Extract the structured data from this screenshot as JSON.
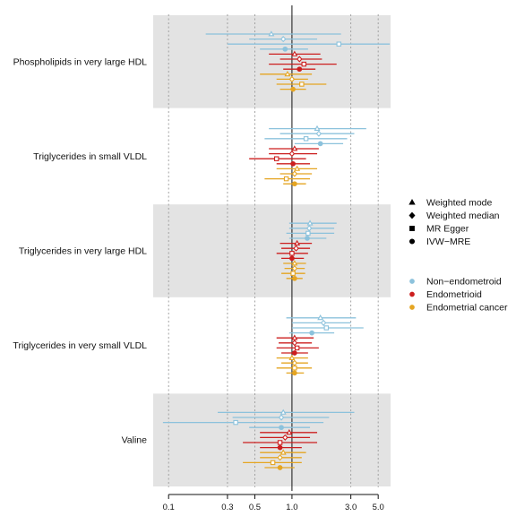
{
  "chart_data": {
    "type": "forest",
    "x_scale": "log",
    "xlim": [
      0.075,
      6.3
    ],
    "x_ticks": [
      0.1,
      0.3,
      0.5,
      1.0,
      3.0,
      5.0
    ],
    "x_tick_labels": [
      "0.1",
      "0.3",
      "0.5",
      "1.0",
      "3.0",
      "5.0"
    ],
    "reference_line": 1.0,
    "grid": "vertical dotted at ticks",
    "legend_position": "right",
    "method_legend": [
      {
        "label": "Weighted mode",
        "shape": "triangle"
      },
      {
        "label": "Weighted median",
        "shape": "diamond"
      },
      {
        "label": "MR Egger",
        "shape": "square"
      },
      {
        "label": "IVW−MRE",
        "shape": "circle"
      }
    ],
    "outcome_legend": [
      {
        "label": "Non−endometroid",
        "color": "#8cc2dc"
      },
      {
        "label": "Endometrioid",
        "color": "#cc1f1f"
      },
      {
        "label": "Endometrial cancer",
        "color": "#e5a522"
      }
    ],
    "method_order": [
      "Weighted mode",
      "Weighted median",
      "MR Egger",
      "IVW−MRE"
    ],
    "groups": [
      {
        "label": "Phospholipids in very large HDL",
        "shaded": true,
        "estimates": [
          {
            "outcome": "Non−endometroid",
            "values": [
              [
                0.68,
                0.2,
                2.5
              ],
              [
                0.85,
                0.45,
                1.6
              ],
              [
                2.4,
                0.3,
                6.2
              ],
              [
                0.88,
                0.55,
                1.35
              ]
            ]
          },
          {
            "outcome": "Endometrioid",
            "values": [
              [
                1.05,
                0.65,
                1.7
              ],
              [
                1.15,
                0.8,
                1.75
              ],
              [
                1.25,
                0.65,
                2.3
              ],
              [
                1.15,
                0.85,
                1.55
              ]
            ]
          },
          {
            "outcome": "Endometrial cancer",
            "values": [
              [
                0.92,
                0.55,
                1.45
              ],
              [
                1.0,
                0.75,
                1.35
              ],
              [
                1.2,
                0.75,
                1.9
              ],
              [
                1.02,
                0.8,
                1.3
              ]
            ]
          }
        ]
      },
      {
        "label": "Triglycerides in small VLDL",
        "shaded": false,
        "estimates": [
          {
            "outcome": "Non−endometroid",
            "values": [
              [
                1.6,
                0.65,
                4.0
              ],
              [
                1.65,
                0.8,
                3.2
              ],
              [
                1.3,
                0.6,
                2.8
              ],
              [
                1.7,
                1.05,
                2.6
              ]
            ]
          },
          {
            "outcome": "Endometrioid",
            "values": [
              [
                1.05,
                0.65,
                1.65
              ],
              [
                1.0,
                0.65,
                1.6
              ],
              [
                0.75,
                0.45,
                1.3
              ],
              [
                1.02,
                0.75,
                1.4
              ]
            ]
          },
          {
            "outcome": "Endometrial cancer",
            "values": [
              [
                1.1,
                0.75,
                1.6
              ],
              [
                1.05,
                0.8,
                1.45
              ],
              [
                0.9,
                0.6,
                1.4
              ],
              [
                1.05,
                0.85,
                1.3
              ]
            ]
          }
        ]
      },
      {
        "label": "Triglycerides in very large HDL",
        "shaded": true,
        "estimates": [
          {
            "outcome": "Non−endometroid",
            "values": [
              [
                1.4,
                0.95,
                2.3
              ],
              [
                1.38,
                0.95,
                2.2
              ],
              [
                1.35,
                0.9,
                2.2
              ],
              [
                1.33,
                0.95,
                1.9
              ]
            ]
          },
          {
            "outcome": "Endometrioid",
            "values": [
              [
                1.1,
                0.8,
                1.45
              ],
              [
                1.08,
                0.82,
                1.4
              ],
              [
                1.0,
                0.75,
                1.35
              ],
              [
                1.0,
                0.82,
                1.25
              ]
            ]
          },
          {
            "outcome": "Endometrial cancer",
            "values": [
              [
                1.05,
                0.85,
                1.3
              ],
              [
                1.05,
                0.87,
                1.27
              ],
              [
                1.02,
                0.82,
                1.28
              ],
              [
                1.05,
                0.9,
                1.22
              ]
            ]
          }
        ]
      },
      {
        "label": "Triglycerides in very small VLDL",
        "shaded": false,
        "estimates": [
          {
            "outcome": "Non−endometroid",
            "values": [
              [
                1.7,
                0.9,
                3.3
              ],
              [
                1.8,
                1.0,
                3.0
              ],
              [
                1.9,
                1.0,
                3.8
              ],
              [
                1.45,
                0.95,
                2.2
              ]
            ]
          },
          {
            "outcome": "Endometrioid",
            "values": [
              [
                1.05,
                0.75,
                1.5
              ],
              [
                1.05,
                0.78,
                1.45
              ],
              [
                1.1,
                0.75,
                1.65
              ],
              [
                1.05,
                0.82,
                1.35
              ]
            ]
          },
          {
            "outcome": "Endometrial cancer",
            "values": [
              [
                1.0,
                0.75,
                1.35
              ],
              [
                1.05,
                0.82,
                1.35
              ],
              [
                1.05,
                0.75,
                1.45
              ],
              [
                1.05,
                0.9,
                1.25
              ]
            ]
          }
        ]
      },
      {
        "label": "Valine",
        "shaded": true,
        "estimates": [
          {
            "outcome": "Non−endometroid",
            "values": [
              [
                0.85,
                0.25,
                3.2
              ],
              [
                0.82,
                0.33,
                2.0
              ],
              [
                0.35,
                0.09,
                1.8
              ],
              [
                0.82,
                0.45,
                1.4
              ]
            ]
          },
          {
            "outcome": "Endometrioid",
            "values": [
              [
                0.95,
                0.55,
                1.6
              ],
              [
                0.88,
                0.55,
                1.4
              ],
              [
                0.8,
                0.4,
                1.6
              ],
              [
                0.8,
                0.55,
                1.2
              ]
            ]
          },
          {
            "outcome": "Endometrial cancer",
            "values": [
              [
                0.85,
                0.55,
                1.3
              ],
              [
                0.8,
                0.55,
                1.2
              ],
              [
                0.7,
                0.4,
                1.2
              ],
              [
                0.8,
                0.6,
                1.05
              ]
            ]
          }
        ]
      }
    ]
  }
}
